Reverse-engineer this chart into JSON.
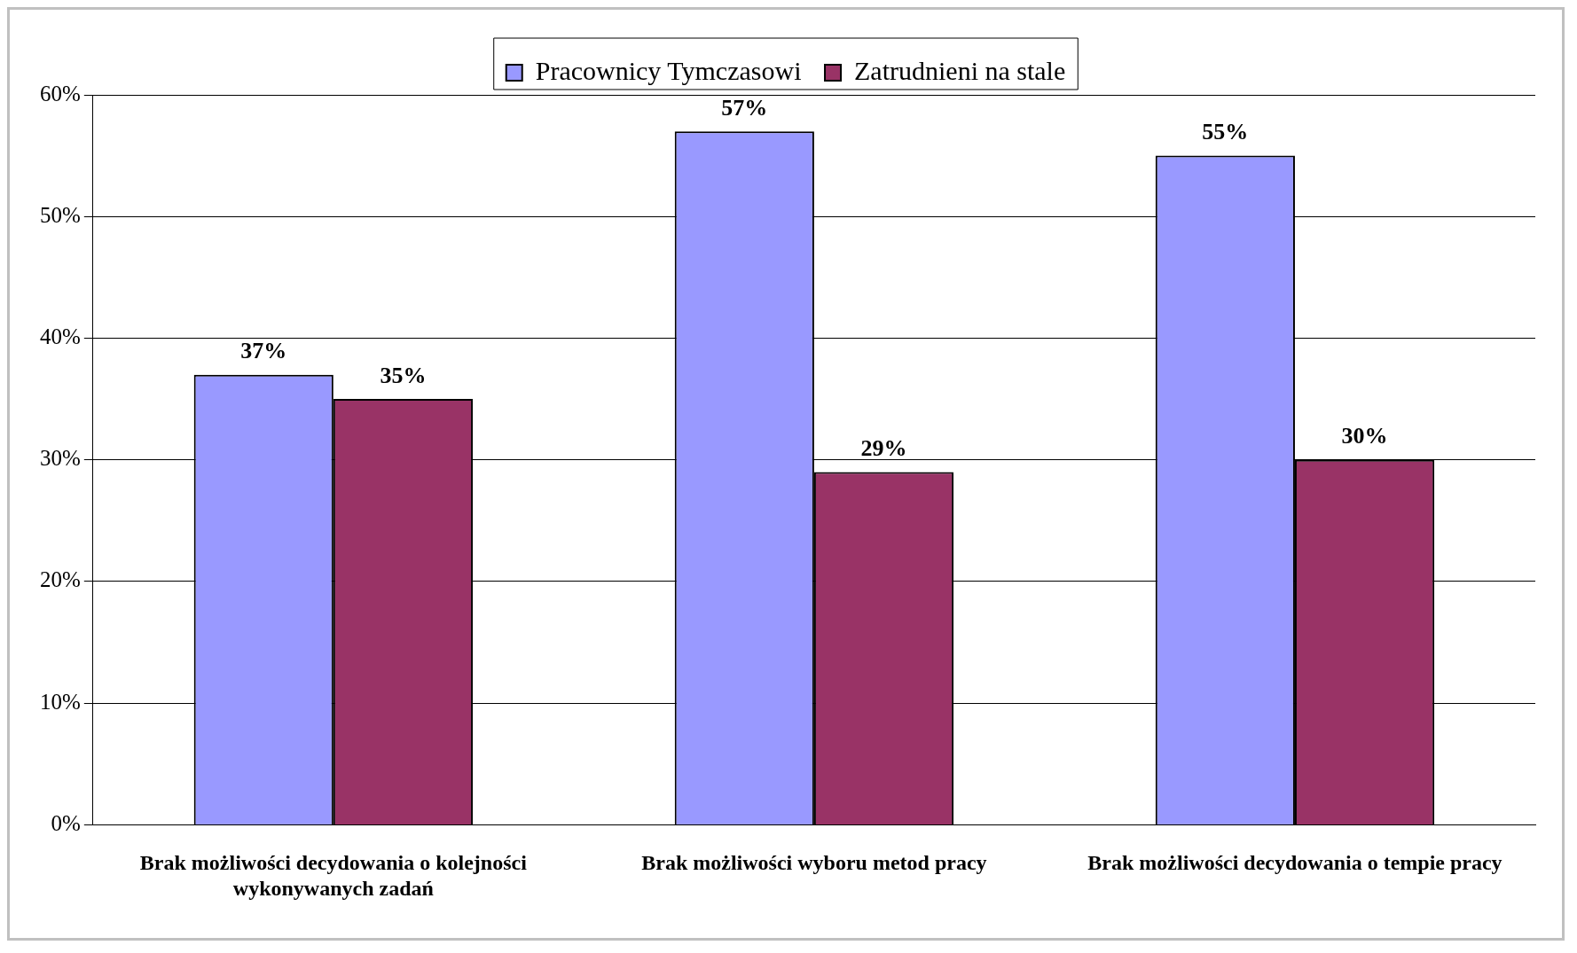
{
  "chart_data": {
    "type": "bar",
    "categories": [
      "Brak możliwości decydowania o kolejności wykonywanych zadań",
      "Brak możliwości wyboru metod pracy",
      "Brak możliwości decydowania o tempie pracy"
    ],
    "series": [
      {
        "name": "Pracownicy Tymczasowi",
        "color": "#9999ff",
        "values": [
          37,
          57,
          55
        ],
        "value_labels": [
          "37%",
          "57%",
          "55%"
        ]
      },
      {
        "name": "Zatrudnieni na stale",
        "color": "#993366",
        "values": [
          35,
          29,
          30
        ],
        "value_labels": [
          "35%",
          "29%",
          "30%"
        ]
      }
    ],
    "ylim": [
      0,
      60
    ],
    "yticks": [
      {
        "value": 0,
        "label": "0%"
      },
      {
        "value": 10,
        "label": "10%"
      },
      {
        "value": 20,
        "label": "20%"
      },
      {
        "value": 30,
        "label": "30%"
      },
      {
        "value": 40,
        "label": "40%"
      },
      {
        "value": 50,
        "label": "50%"
      },
      {
        "value": 60,
        "label": "60%"
      }
    ],
    "grid": "y",
    "legend": "top"
  }
}
